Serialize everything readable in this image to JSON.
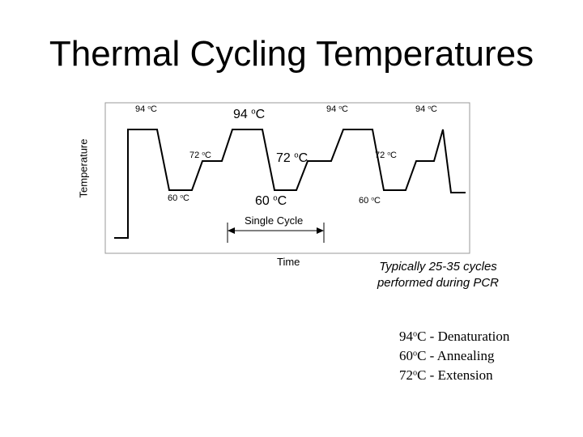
{
  "title": "Thermal Cycling Temperatures",
  "axes": {
    "y_label": "Temperature",
    "x_label": "Time"
  },
  "temperature_labels": {
    "p1_high": {
      "num": "94",
      "sup": "o",
      "unit": "C"
    },
    "p2_high": {
      "num": "94",
      "sup": "o",
      "unit": "C"
    },
    "p3_high": {
      "num": "94",
      "sup": "o",
      "unit": "C"
    },
    "p4_high": {
      "num": "94",
      "sup": "o",
      "unit": "C"
    },
    "p1_ext": {
      "num": "72",
      "sup": "o",
      "unit": "C"
    },
    "p2_ext": {
      "num": "72",
      "sup": "o",
      "unit": "C"
    },
    "p3_ext": {
      "num": "72",
      "sup": "o",
      "unit": "C"
    },
    "p1_low": {
      "num": "60",
      "sup": "o",
      "unit": "C"
    },
    "p2_low": {
      "num": "60",
      "sup": "o",
      "unit": "C"
    },
    "p3_low": {
      "num": "60",
      "sup": "o",
      "unit": "C"
    }
  },
  "cycle_label": "Single Cycle",
  "note": {
    "line1": "Typically 25-35 cycles",
    "line2": "performed during PCR"
  },
  "legend": [
    {
      "num": "94",
      "sup": "o",
      "text": "C - Denaturation"
    },
    {
      "num": "60",
      "sup": "o",
      "text": "C - Annealing"
    },
    {
      "num": "72",
      "sup": "o",
      "text": "C - Extension"
    }
  ]
}
